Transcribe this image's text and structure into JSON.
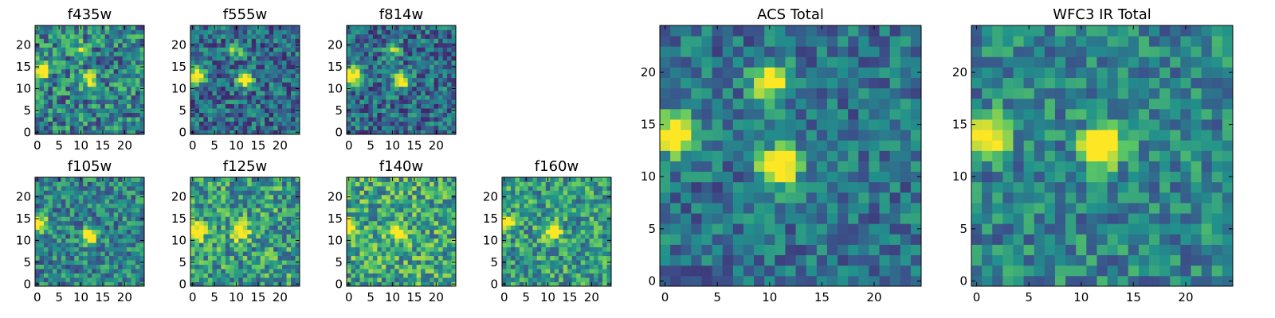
{
  "figure": {
    "description_type": "image-grid",
    "colormap": [
      "#440154",
      "#3b528b",
      "#21918c",
      "#5ec962",
      "#fde725"
    ]
  },
  "chart_data": [
    {
      "type": "heatmap",
      "id": "f435w",
      "title": "f435w",
      "size": 25,
      "xticks": [
        0,
        5,
        10,
        15,
        20
      ],
      "yticks": [
        0,
        5,
        10,
        15,
        20
      ],
      "sources": [
        {
          "x": 1,
          "y": 14,
          "amp": 0.95
        },
        {
          "x": 12,
          "y": 12,
          "amp": 0.55
        },
        {
          "x": 10,
          "y": 19,
          "amp": 0.35
        }
      ],
      "noise": 0.3,
      "base": 0.45,
      "seed": 11
    },
    {
      "type": "heatmap",
      "id": "f555w",
      "title": "f555w",
      "size": 25,
      "xticks": [
        0,
        5,
        10,
        15,
        20
      ],
      "yticks": [
        0,
        5,
        10,
        15,
        20
      ],
      "sources": [
        {
          "x": 1,
          "y": 13,
          "amp": 1.0
        },
        {
          "x": 12,
          "y": 12,
          "amp": 0.85
        },
        {
          "x": 10,
          "y": 19,
          "amp": 0.45
        }
      ],
      "noise": 0.25,
      "base": 0.35,
      "seed": 23
    },
    {
      "type": "heatmap",
      "id": "f814w",
      "title": "f814w",
      "size": 25,
      "xticks": [
        0,
        5,
        10,
        15,
        20
      ],
      "yticks": [
        0,
        5,
        10,
        15,
        20
      ],
      "sources": [
        {
          "x": 1,
          "y": 13,
          "amp": 1.0
        },
        {
          "x": 12,
          "y": 12,
          "amp": 0.85
        },
        {
          "x": 10,
          "y": 19,
          "amp": 0.5
        }
      ],
      "noise": 0.25,
      "base": 0.35,
      "seed": 37
    },
    {
      "type": "heatmap",
      "id": "f105w",
      "title": "f105w",
      "size": 25,
      "xticks": [
        0,
        5,
        10,
        15,
        20
      ],
      "yticks": [
        0,
        5,
        10,
        15,
        20
      ],
      "sources": [
        {
          "x": 0,
          "y": 14,
          "amp": 0.95
        },
        {
          "x": 12,
          "y": 11,
          "amp": 0.7
        }
      ],
      "noise": 0.25,
      "base": 0.45,
      "seed": 41
    },
    {
      "type": "heatmap",
      "id": "f125w",
      "title": "f125w",
      "size": 25,
      "xticks": [
        0,
        5,
        10,
        15,
        20
      ],
      "yticks": [
        0,
        5,
        10,
        15,
        20
      ],
      "sources": [
        {
          "x": 1,
          "y": 12,
          "amp": 0.9
        },
        {
          "x": 11,
          "y": 12,
          "amp": 0.85
        }
      ],
      "noise": 0.3,
      "base": 0.55,
      "seed": 53
    },
    {
      "type": "heatmap",
      "id": "f140w",
      "title": "f140w",
      "size": 25,
      "xticks": [
        0,
        5,
        10,
        15,
        20
      ],
      "yticks": [
        0,
        5,
        10,
        15,
        20
      ],
      "sources": [
        {
          "x": 0,
          "y": 13,
          "amp": 0.9
        },
        {
          "x": 11,
          "y": 12,
          "amp": 0.7
        }
      ],
      "noise": 0.3,
      "base": 0.6,
      "seed": 67
    },
    {
      "type": "heatmap",
      "id": "f160w",
      "title": "f160w",
      "size": 25,
      "xticks": [
        0,
        5,
        10,
        15,
        20
      ],
      "yticks": [
        0,
        5,
        10,
        15,
        20
      ],
      "sources": [
        {
          "x": 0,
          "y": 14,
          "amp": 0.9
        },
        {
          "x": 11,
          "y": 12,
          "amp": 0.8
        }
      ],
      "noise": 0.28,
      "base": 0.55,
      "seed": 79
    },
    {
      "type": "heatmap",
      "id": "acs_total",
      "title": "ACS Total",
      "size": 25,
      "xticks": [
        0,
        5,
        10,
        15,
        20
      ],
      "yticks": [
        0,
        5,
        10,
        15,
        20
      ],
      "sources": [
        {
          "x": 1,
          "y": 14,
          "amp": 1.1
        },
        {
          "x": 11,
          "y": 11,
          "amp": 1.0
        },
        {
          "x": 10,
          "y": 19,
          "amp": 0.7
        }
      ],
      "noise": 0.2,
      "base": 0.38,
      "seed": 97
    },
    {
      "type": "heatmap",
      "id": "wfc3_ir_total",
      "title": "WFC3 IR Total",
      "size": 25,
      "xticks": [
        0,
        5,
        10,
        15,
        20
      ],
      "yticks": [
        0,
        5,
        10,
        15,
        20
      ],
      "sources": [
        {
          "x": 1,
          "y": 14,
          "amp": 0.95
        },
        {
          "x": 12,
          "y": 13,
          "amp": 1.0
        }
      ],
      "noise": 0.22,
      "base": 0.45,
      "seed": 113
    }
  ]
}
